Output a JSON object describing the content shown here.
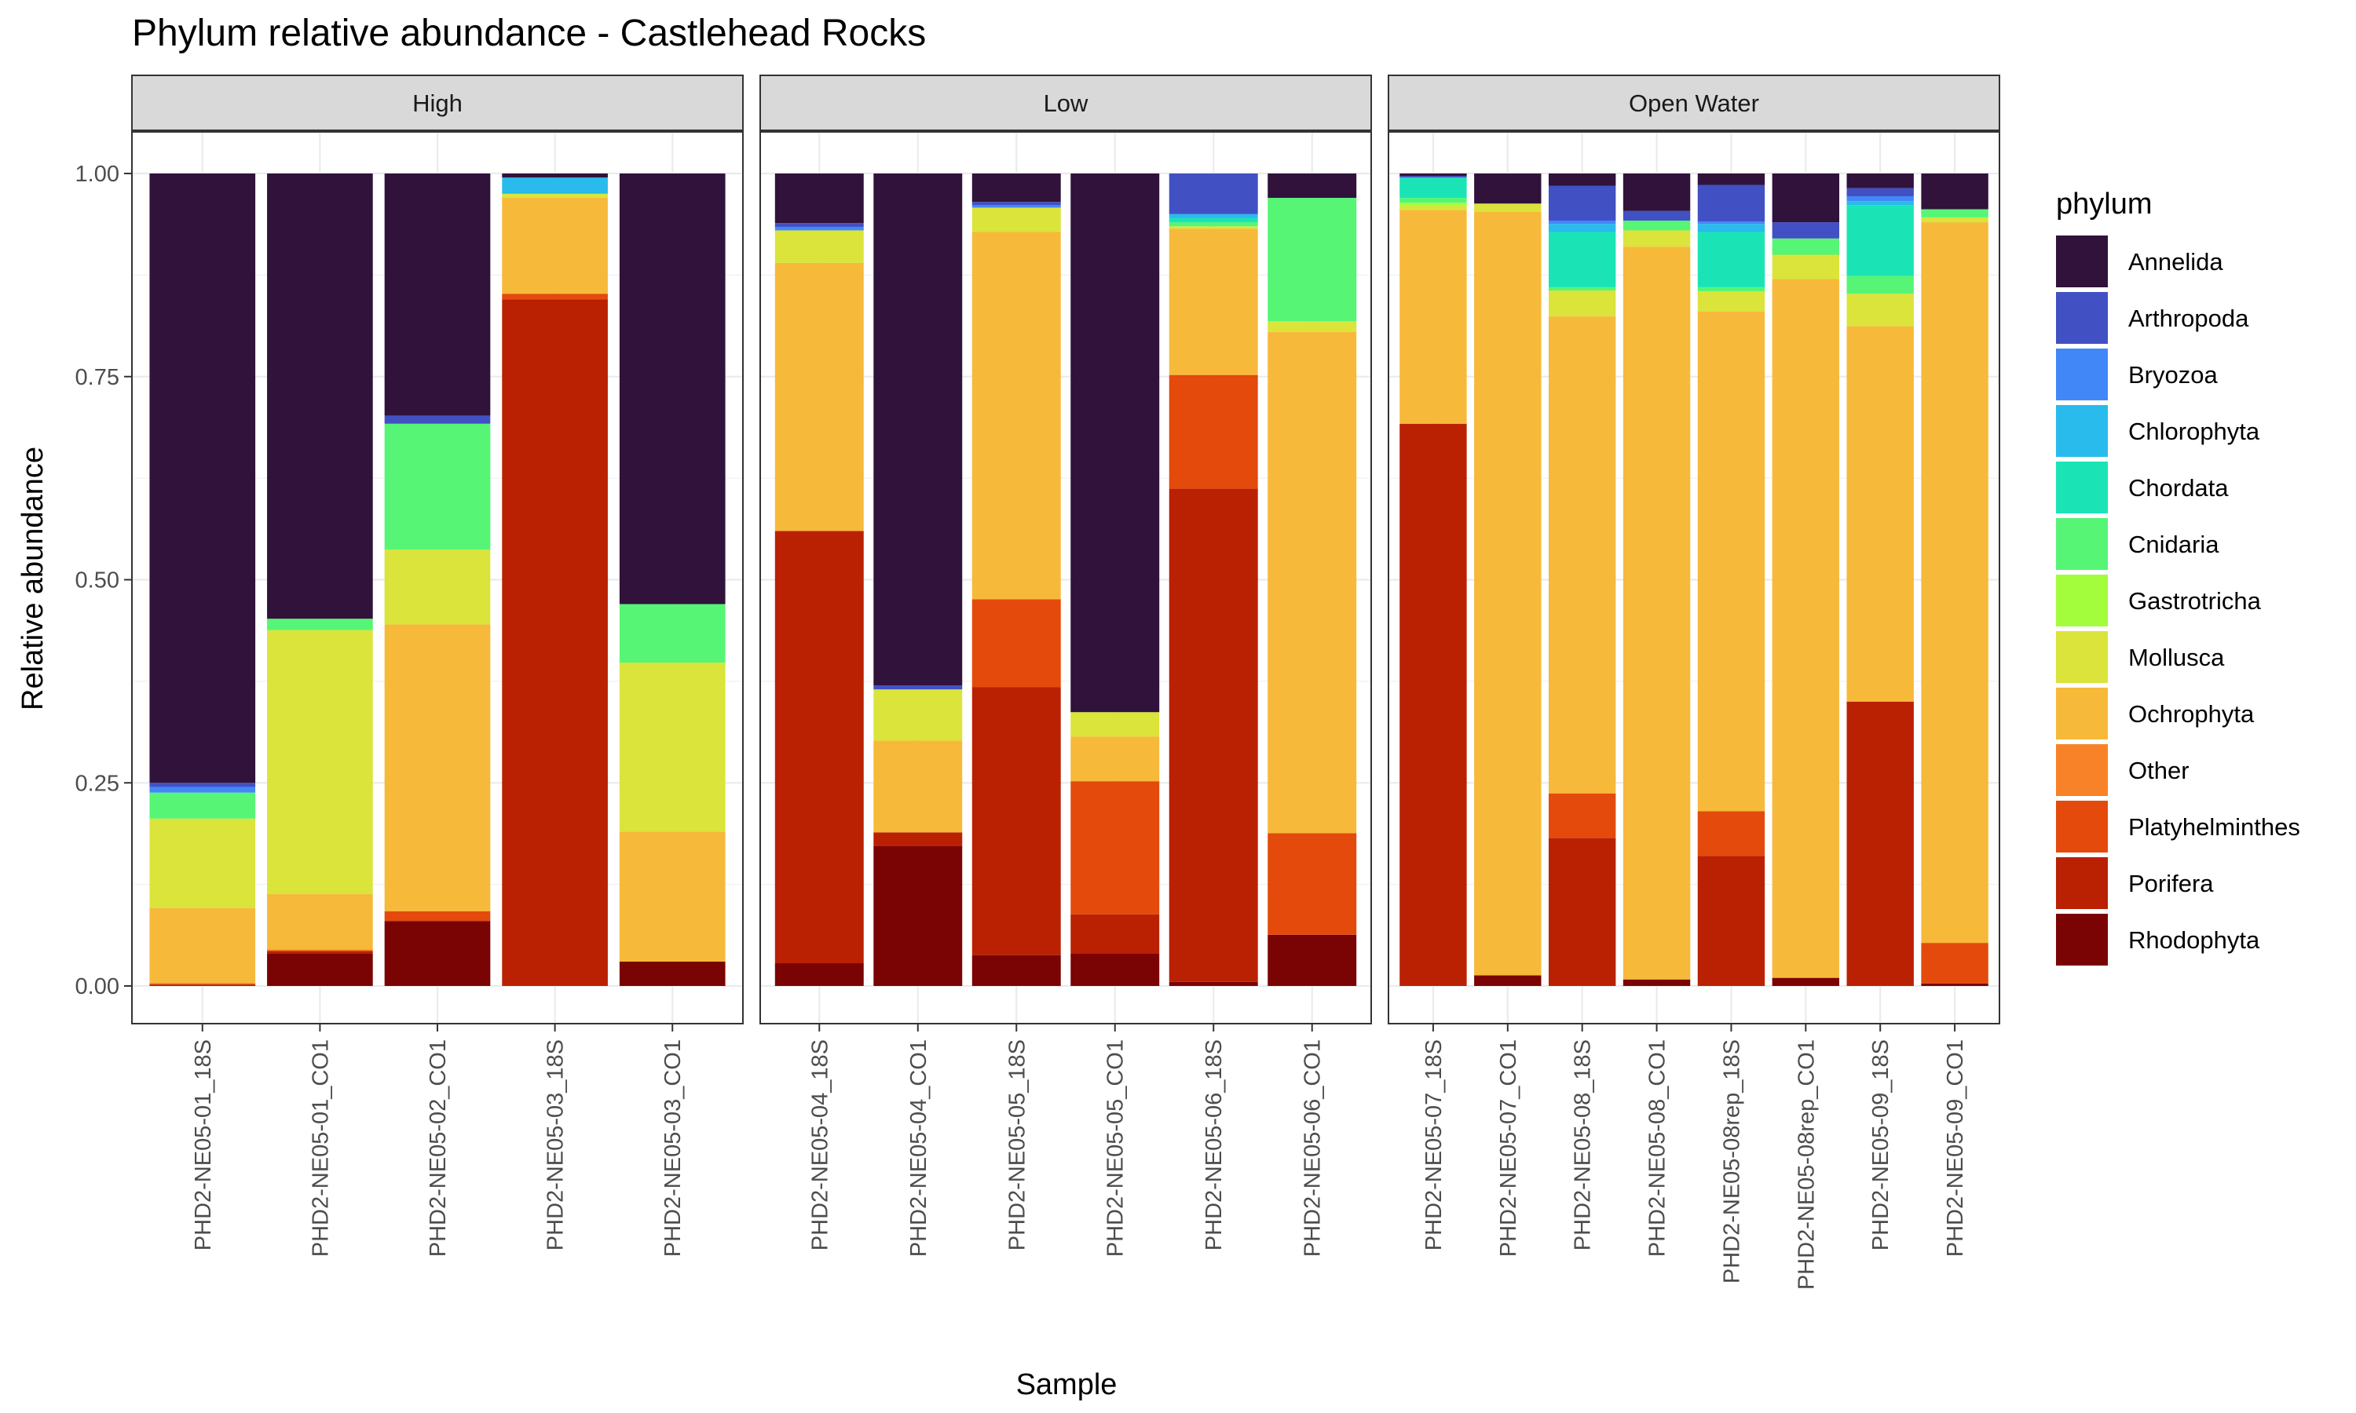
{
  "chart_data": {
    "type": "bar",
    "stacked": true,
    "title": "Phylum relative abundance - Castlehead Rocks",
    "xlabel": "Sample",
    "ylabel": "Relative abundance",
    "ylim": [
      0,
      1
    ],
    "yticks": [
      "0.00",
      "0.25",
      "0.50",
      "0.75",
      "1.00"
    ],
    "grid": true,
    "legend": {
      "title": "phylum",
      "position": "right",
      "items": [
        {
          "name": "Annelida",
          "color": "#30123B"
        },
        {
          "name": "Arthropoda",
          "color": "#4150C3"
        },
        {
          "name": "Bryozoa",
          "color": "#4287F8"
        },
        {
          "name": "Chlorophyta",
          "color": "#28BBEC"
        },
        {
          "name": "Chordata",
          "color": "#1AE4B6"
        },
        {
          "name": "Cnidaria",
          "color": "#56F576"
        },
        {
          "name": "Gastrotricha",
          "color": "#A3FD3D"
        },
        {
          "name": "Mollusca",
          "color": "#DAE43A"
        },
        {
          "name": "Ochrophyta",
          "color": "#F7B93A"
        },
        {
          "name": "Other",
          "color": "#F88227"
        },
        {
          "name": "Platyhelminthes",
          "color": "#E34A0C"
        },
        {
          "name": "Porifera",
          "color": "#B92102"
        },
        {
          "name": "Rhodophyta",
          "color": "#7A0403"
        }
      ]
    },
    "stack_order_bottom_to_top": [
      "Rhodophyta",
      "Porifera",
      "Platyhelminthes",
      "Other",
      "Ochrophyta",
      "Mollusca",
      "Gastrotricha",
      "Cnidaria",
      "Chordata",
      "Chlorophyta",
      "Bryozoa",
      "Arthropoda",
      "Annelida"
    ],
    "facets": [
      {
        "label": "High",
        "samples": [
          {
            "name": "PHD2-NE05-01_18S",
            "values": {
              "Rhodophyta": 0.0,
              "Porifera": 0.002,
              "Platyhelminthes": 0.0,
              "Other": 0.002,
              "Ochrophyta": 0.092,
              "Mollusca": 0.11,
              "Gastrotricha": 0.0,
              "Cnidaria": 0.032,
              "Chordata": 0.0,
              "Chlorophyta": 0.0,
              "Bryozoa": 0.007,
              "Arthropoda": 0.005,
              "Annelida": 0.75
            }
          },
          {
            "name": "PHD2-NE05-01_CO1",
            "values": {
              "Rhodophyta": 0.04,
              "Porifera": 0.003,
              "Platyhelminthes": 0.0,
              "Other": 0.002,
              "Ochrophyta": 0.068,
              "Mollusca": 0.325,
              "Gastrotricha": 0.0,
              "Cnidaria": 0.014,
              "Chordata": 0.0,
              "Chlorophyta": 0.0,
              "Bryozoa": 0.0,
              "Arthropoda": 0.0,
              "Annelida": 0.548
            }
          },
          {
            "name": "PHD2-NE05-02_CO1",
            "values": {
              "Rhodophyta": 0.08,
              "Porifera": 0.0,
              "Platyhelminthes": 0.012,
              "Other": 0.0,
              "Ochrophyta": 0.353,
              "Mollusca": 0.092,
              "Gastrotricha": 0.0,
              "Cnidaria": 0.155,
              "Chordata": 0.0,
              "Chlorophyta": 0.0,
              "Bryozoa": 0.0,
              "Arthropoda": 0.01,
              "Annelida": 0.298
            }
          },
          {
            "name": "PHD2-NE05-03_18S",
            "values": {
              "Rhodophyta": 0.0,
              "Porifera": 0.845,
              "Platyhelminthes": 0.007,
              "Other": 0.0,
              "Ochrophyta": 0.118,
              "Mollusca": 0.005,
              "Gastrotricha": 0.0,
              "Cnidaria": 0.0,
              "Chordata": 0.0,
              "Chlorophyta": 0.02,
              "Bryozoa": 0.0,
              "Arthropoda": 0.0,
              "Annelida": 0.005
            }
          },
          {
            "name": "PHD2-NE05-03_CO1",
            "values": {
              "Rhodophyta": 0.03,
              "Porifera": 0.0,
              "Platyhelminthes": 0.0,
              "Other": 0.0,
              "Ochrophyta": 0.16,
              "Mollusca": 0.208,
              "Gastrotricha": 0.0,
              "Cnidaria": 0.072,
              "Chordata": 0.0,
              "Chlorophyta": 0.0,
              "Bryozoa": 0.0,
              "Arthropoda": 0.0,
              "Annelida": 0.53
            }
          }
        ]
      },
      {
        "label": "Low",
        "samples": [
          {
            "name": "PHD2-NE05-04_18S",
            "values": {
              "Rhodophyta": 0.028,
              "Porifera": 0.532,
              "Platyhelminthes": 0.0,
              "Other": 0.0,
              "Ochrophyta": 0.33,
              "Mollusca": 0.04,
              "Gastrotricha": 0.0,
              "Cnidaria": 0.0,
              "Chordata": 0.0,
              "Chlorophyta": 0.0,
              "Bryozoa": 0.004,
              "Arthropoda": 0.005,
              "Annelida": 0.061
            }
          },
          {
            "name": "PHD2-NE05-04_CO1",
            "values": {
              "Rhodophyta": 0.172,
              "Porifera": 0.017,
              "Platyhelminthes": 0.0,
              "Other": 0.0,
              "Ochrophyta": 0.113,
              "Mollusca": 0.063,
              "Gastrotricha": 0.0,
              "Cnidaria": 0.0,
              "Chordata": 0.0,
              "Chlorophyta": 0.0,
              "Bryozoa": 0.0,
              "Arthropoda": 0.005,
              "Annelida": 0.63
            }
          },
          {
            "name": "PHD2-NE05-05_18S",
            "values": {
              "Rhodophyta": 0.038,
              "Porifera": 0.33,
              "Platyhelminthes": 0.108,
              "Other": 0.0,
              "Ochrophyta": 0.452,
              "Mollusca": 0.03,
              "Gastrotricha": 0.0,
              "Cnidaria": 0.0,
              "Chordata": 0.0,
              "Chlorophyta": 0.0,
              "Bryozoa": 0.003,
              "Arthropoda": 0.004,
              "Annelida": 0.035
            }
          },
          {
            "name": "PHD2-NE05-05_CO1",
            "values": {
              "Rhodophyta": 0.04,
              "Porifera": 0.048,
              "Platyhelminthes": 0.164,
              "Other": 0.0,
              "Ochrophyta": 0.055,
              "Mollusca": 0.03,
              "Gastrotricha": 0.0,
              "Cnidaria": 0.0,
              "Chordata": 0.0,
              "Chlorophyta": 0.0,
              "Bryozoa": 0.0,
              "Arthropoda": 0.0,
              "Annelida": 0.663
            }
          },
          {
            "name": "PHD2-NE05-06_18S",
            "values": {
              "Rhodophyta": 0.005,
              "Porifera": 0.607,
              "Platyhelminthes": 0.14,
              "Other": 0.0,
              "Ochrophyta": 0.18,
              "Mollusca": 0.003,
              "Gastrotricha": 0.0,
              "Cnidaria": 0.005,
              "Chordata": 0.005,
              "Chlorophyta": 0.005,
              "Bryozoa": 0.0,
              "Arthropoda": 0.05,
              "Annelida": 0.0
            }
          },
          {
            "name": "PHD2-NE05-06_CO1",
            "values": {
              "Rhodophyta": 0.063,
              "Porifera": 0.0,
              "Platyhelminthes": 0.125,
              "Other": 0.0,
              "Ochrophyta": 0.617,
              "Mollusca": 0.013,
              "Gastrotricha": 0.0,
              "Cnidaria": 0.152,
              "Chordata": 0.0,
              "Chlorophyta": 0.0,
              "Bryozoa": 0.0,
              "Arthropoda": 0.0,
              "Annelida": 0.03
            }
          }
        ]
      },
      {
        "label": "Open Water",
        "samples": [
          {
            "name": "PHD2-NE05-07_18S",
            "values": {
              "Rhodophyta": 0.0,
              "Porifera": 0.692,
              "Platyhelminthes": 0.0,
              "Other": 0.0,
              "Ochrophyta": 0.263,
              "Mollusca": 0.005,
              "Gastrotricha": 0.004,
              "Cnidaria": 0.006,
              "Chordata": 0.025,
              "Chlorophyta": 0.0,
              "Bryozoa": 0.0,
              "Arthropoda": 0.002,
              "Annelida": 0.003
            }
          },
          {
            "name": "PHD2-NE05-07_CO1",
            "values": {
              "Rhodophyta": 0.013,
              "Porifera": 0.0,
              "Platyhelminthes": 0.0,
              "Other": 0.0,
              "Ochrophyta": 0.94,
              "Mollusca": 0.01,
              "Gastrotricha": 0.0,
              "Cnidaria": 0.0,
              "Chordata": 0.0,
              "Chlorophyta": 0.0,
              "Bryozoa": 0.0,
              "Arthropoda": 0.0,
              "Annelida": 0.037
            }
          },
          {
            "name": "PHD2-NE05-08_18S",
            "values": {
              "Rhodophyta": 0.0,
              "Porifera": 0.182,
              "Platyhelminthes": 0.055,
              "Other": 0.0,
              "Ochrophyta": 0.587,
              "Mollusca": 0.032,
              "Gastrotricha": 0.0,
              "Cnidaria": 0.004,
              "Chordata": 0.068,
              "Chlorophyta": 0.01,
              "Bryozoa": 0.004,
              "Arthropoda": 0.043,
              "Annelida": 0.015
            }
          },
          {
            "name": "PHD2-NE05-08_CO1",
            "values": {
              "Rhodophyta": 0.008,
              "Porifera": 0.0,
              "Platyhelminthes": 0.0,
              "Other": 0.0,
              "Ochrophyta": 0.902,
              "Mollusca": 0.02,
              "Gastrotricha": 0.0,
              "Cnidaria": 0.012,
              "Chordata": 0.0,
              "Chlorophyta": 0.0,
              "Bryozoa": 0.0,
              "Arthropoda": 0.012,
              "Annelida": 0.046
            }
          },
          {
            "name": "PHD2-NE05-08rep_18S",
            "values": {
              "Rhodophyta": 0.0,
              "Porifera": 0.16,
              "Platyhelminthes": 0.055,
              "Other": 0.0,
              "Ochrophyta": 0.615,
              "Mollusca": 0.025,
              "Gastrotricha": 0.0,
              "Cnidaria": 0.005,
              "Chordata": 0.068,
              "Chlorophyta": 0.01,
              "Bryozoa": 0.003,
              "Arthropoda": 0.045,
              "Annelida": 0.014
            }
          },
          {
            "name": "PHD2-NE05-08rep_CO1",
            "values": {
              "Rhodophyta": 0.01,
              "Porifera": 0.0,
              "Platyhelminthes": 0.0,
              "Other": 0.0,
              "Ochrophyta": 0.86,
              "Mollusca": 0.03,
              "Gastrotricha": 0.0,
              "Cnidaria": 0.02,
              "Chordata": 0.0,
              "Chlorophyta": 0.0,
              "Bryozoa": 0.0,
              "Arthropoda": 0.02,
              "Annelida": 0.06
            }
          },
          {
            "name": "PHD2-NE05-09_18S",
            "values": {
              "Rhodophyta": 0.0,
              "Porifera": 0.35,
              "Platyhelminthes": 0.0,
              "Other": 0.0,
              "Ochrophyta": 0.462,
              "Mollusca": 0.04,
              "Gastrotricha": 0.0,
              "Cnidaria": 0.022,
              "Chordata": 0.087,
              "Chlorophyta": 0.005,
              "Bryozoa": 0.006,
              "Arthropoda": 0.01,
              "Annelida": 0.018
            }
          },
          {
            "name": "PHD2-NE05-09_CO1",
            "values": {
              "Rhodophyta": 0.003,
              "Porifera": 0.0,
              "Platyhelminthes": 0.05,
              "Other": 0.0,
              "Ochrophyta": 0.887,
              "Mollusca": 0.006,
              "Gastrotricha": 0.0,
              "Cnidaria": 0.01,
              "Chordata": 0.0,
              "Chlorophyta": 0.0,
              "Bryozoa": 0.0,
              "Arthropoda": 0.0,
              "Annelida": 0.044
            }
          }
        ]
      }
    ]
  }
}
